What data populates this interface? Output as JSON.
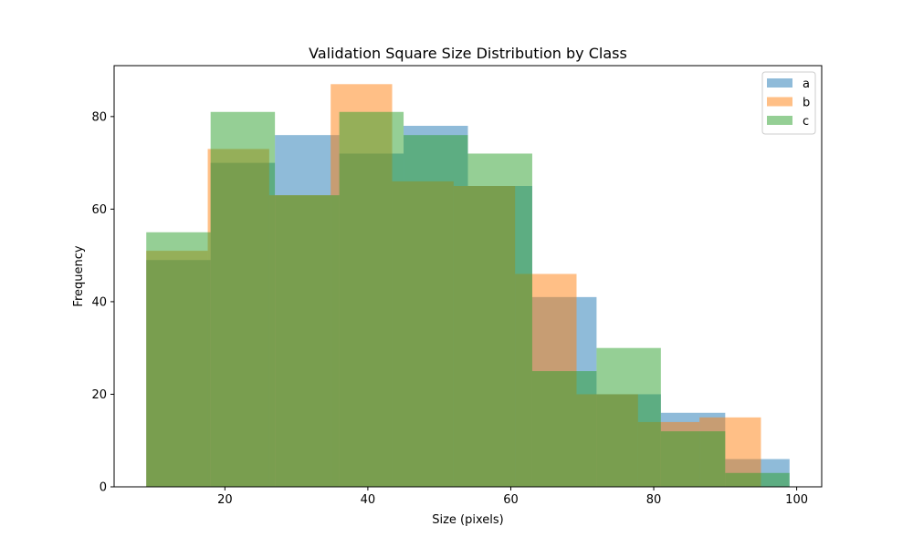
{
  "chart_data": {
    "type": "bar",
    "title": "Validation Square Size Distribution by Class",
    "xlabel": "Size (pixels)",
    "ylabel": "Frequency",
    "xlim": [
      4.5,
      103.5
    ],
    "ylim": [
      0,
      91
    ],
    "xticks": [
      20,
      40,
      60,
      80,
      100
    ],
    "yticks": [
      0,
      20,
      40,
      60,
      80
    ],
    "grid": false,
    "legend_position": "top-right",
    "series": [
      {
        "name": "a",
        "color": "#1f77b4",
        "alpha": 0.5,
        "bin_edges": [
          9,
          18,
          27,
          36,
          45,
          54,
          63,
          72,
          81,
          90,
          99
        ],
        "values": [
          49,
          70,
          76,
          72,
          78,
          65,
          41,
          20,
          16,
          6
        ]
      },
      {
        "name": "b",
        "color": "#ff7f0e",
        "alpha": 0.5,
        "bin_edges": [
          9,
          17.6,
          26.2,
          34.8,
          43.4,
          52,
          60.6,
          69.2,
          77.8,
          86.4,
          95
        ],
        "values": [
          51,
          73,
          63,
          87,
          66,
          65,
          46,
          20,
          14,
          15
        ]
      },
      {
        "name": "c",
        "color": "#2ca02c",
        "alpha": 0.5,
        "bin_edges": [
          9,
          18,
          27,
          36,
          45,
          54,
          63,
          72,
          81,
          90,
          99
        ],
        "values": [
          55,
          81,
          63,
          81,
          76,
          72,
          25,
          30,
          12,
          3
        ]
      }
    ]
  }
}
